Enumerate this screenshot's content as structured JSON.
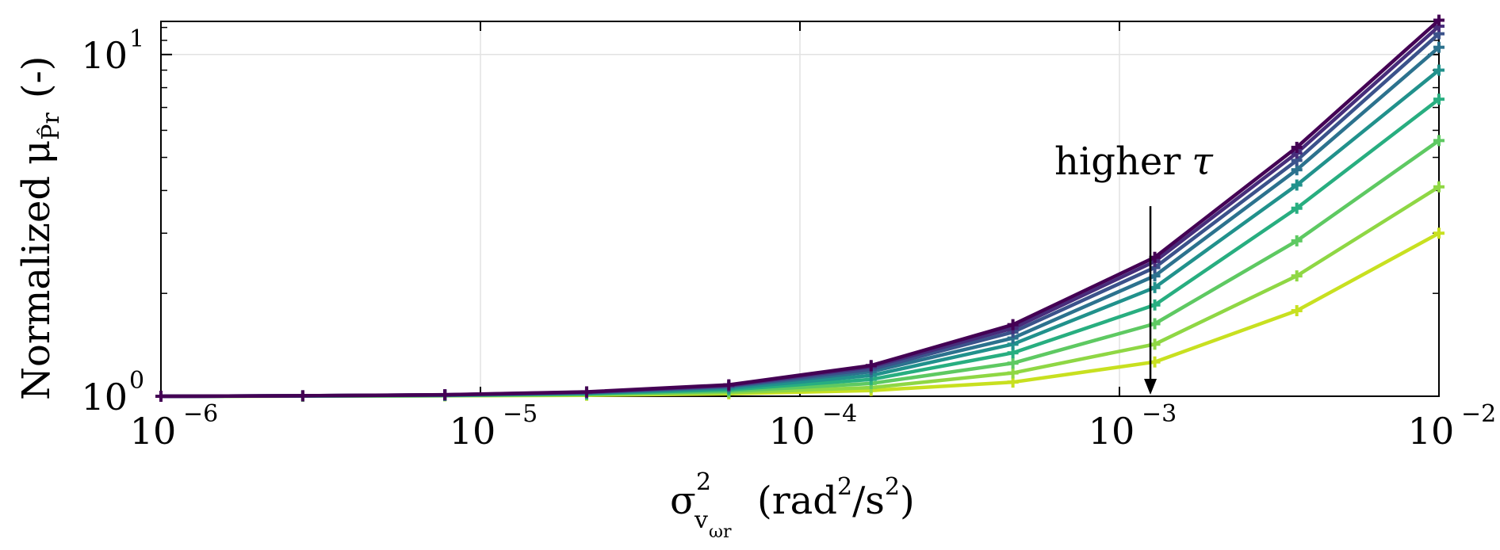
{
  "chart_data": {
    "type": "line",
    "xscale": "log",
    "yscale": "log",
    "xlim": [
      1e-06,
      0.01
    ],
    "ylim": [
      1,
      12.5
    ],
    "x_ticks": [
      {
        "base": "10",
        "exp": "−6",
        "value": 1e-06
      },
      {
        "base": "10",
        "exp": "−5",
        "value": 1e-05
      },
      {
        "base": "10",
        "exp": "−4",
        "value": 0.0001
      },
      {
        "base": "10",
        "exp": "−3",
        "value": 0.001
      },
      {
        "base": "10",
        "exp": "−2",
        "value": 0.01
      }
    ],
    "y_ticks": [
      {
        "base": "10",
        "exp": "0",
        "value": 1
      },
      {
        "base": "10",
        "exp": "1",
        "value": 10
      }
    ],
    "xlabel": {
      "sigma": "σ",
      "sigma_sup": "2",
      "sigma_sub": "v",
      "sigma_subsub": "ωr",
      "units_open": "(rad",
      "units_sup1": "2",
      "units_mid": "/s",
      "units_sup2": "2",
      "units_close": ")"
    },
    "ylabel": {
      "prefix": "Normalized",
      "mu": "μ",
      "mu_sub": "P̂r",
      "units": "(-)"
    },
    "grid": true,
    "annotation": {
      "text": "higher",
      "symbol": "τ",
      "x": 0.00125,
      "y_start": 3.6,
      "y_end": 1.0
    },
    "x": [
      1e-06,
      2.78e-06,
      7.74e-06,
      2.15e-05,
      5.99e-05,
      0.000167,
      0.000464,
      0.00129,
      0.00359,
      0.01
    ],
    "series": [
      {
        "color": "#440154",
        "values": [
          1.0,
          1.003,
          1.01,
          1.03,
          1.08,
          1.23,
          1.62,
          2.55,
          5.35,
          12.6
        ]
      },
      {
        "color": "#472d7b",
        "values": [
          1.0,
          1.003,
          1.009,
          1.028,
          1.075,
          1.22,
          1.58,
          2.48,
          5.15,
          12.1
        ]
      },
      {
        "color": "#3b528b",
        "values": [
          1.0,
          1.003,
          1.009,
          1.026,
          1.07,
          1.2,
          1.54,
          2.38,
          4.9,
          11.5
        ]
      },
      {
        "color": "#2c728e",
        "values": [
          1.0,
          1.003,
          1.008,
          1.024,
          1.065,
          1.18,
          1.48,
          2.25,
          4.6,
          10.5
        ]
      },
      {
        "color": "#21918c",
        "values": [
          1.0,
          1.002,
          1.007,
          1.021,
          1.055,
          1.15,
          1.42,
          2.08,
          4.15,
          9.0
        ]
      },
      {
        "color": "#28ae80",
        "values": [
          1.0,
          1.002,
          1.006,
          1.018,
          1.045,
          1.12,
          1.34,
          1.85,
          3.55,
          7.4
        ]
      },
      {
        "color": "#5ec962",
        "values": [
          1.0,
          1.002,
          1.005,
          1.014,
          1.035,
          1.09,
          1.25,
          1.63,
          2.85,
          5.6
        ]
      },
      {
        "color": "#8fd744",
        "values": [
          1.0,
          1.001,
          1.004,
          1.01,
          1.025,
          1.06,
          1.17,
          1.42,
          2.25,
          4.1
        ]
      },
      {
        "color": "#c8e020",
        "values": [
          1.0,
          1.001,
          1.003,
          1.007,
          1.017,
          1.04,
          1.1,
          1.26,
          1.78,
          3.0
        ]
      }
    ]
  }
}
